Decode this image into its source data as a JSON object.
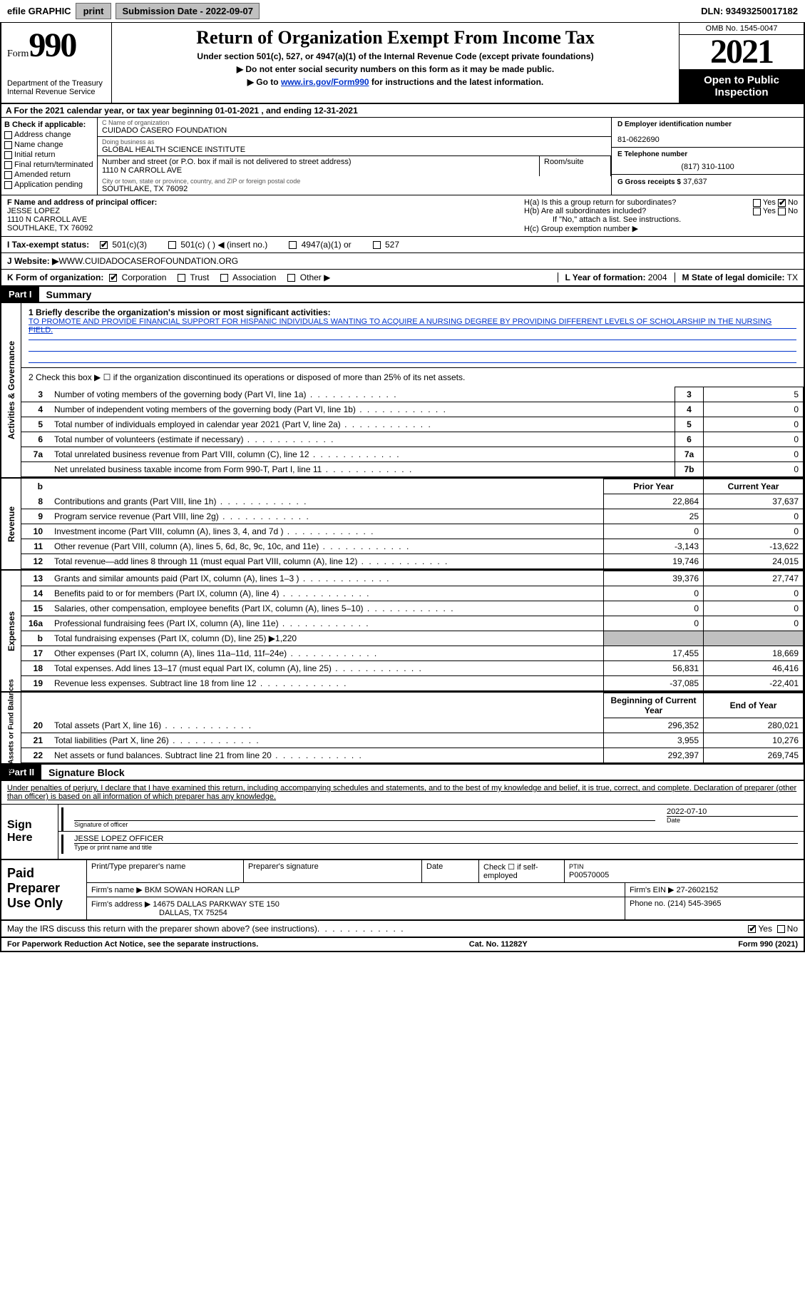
{
  "topbar": {
    "efile_label": "efile GRAPHIC",
    "print_btn": "print",
    "submission_date_label": "Submission Date - 2022-09-07",
    "dln": "DLN: 93493250017182"
  },
  "header": {
    "form_word": "Form",
    "form_number": "990",
    "dept": "Department of the Treasury",
    "irs": "Internal Revenue Service",
    "title": "Return of Organization Exempt From Income Tax",
    "subtitle": "Under section 501(c), 527, or 4947(a)(1) of the Internal Revenue Code (except private foundations)",
    "note1": "▶ Do not enter social security numbers on this form as it may be made public.",
    "note2_pre": "▶ Go to ",
    "note2_link": "www.irs.gov/Form990",
    "note2_post": " for instructions and the latest information.",
    "omb": "OMB No. 1545-0047",
    "year": "2021",
    "open": "Open to Public Inspection"
  },
  "line_a": {
    "text": "A For the 2021 calendar year, or tax year beginning 01-01-2021   , and ending 12-31-2021"
  },
  "col_b": {
    "header": "B Check if applicable:",
    "items": [
      "Address change",
      "Name change",
      "Initial return",
      "Final return/terminated",
      "Amended return",
      "Application pending"
    ]
  },
  "col_c": {
    "name_label": "C Name of organization",
    "name": "CUIDADO CASERO FOUNDATION",
    "dba_label": "Doing business as",
    "dba": "GLOBAL HEALTH SCIENCE INSTITUTE",
    "street_label": "Number and street (or P.O. box if mail is not delivered to street address)",
    "street": "1110 N CARROLL AVE",
    "room_label": "Room/suite",
    "room": "",
    "city_label": "City or town, state or province, country, and ZIP or foreign postal code",
    "city": "SOUTHLAKE, TX  76092"
  },
  "col_d": {
    "ein_label": "D Employer identification number",
    "ein": "81-0622690",
    "tel_label": "E Telephone number",
    "tel": "(817) 310-1100",
    "gross_label": "G Gross receipts $",
    "gross": "37,637"
  },
  "row_f": {
    "label": "F  Name and address of principal officer:",
    "name": "JESSE LOPEZ",
    "addr1": "1110 N CARROLL AVE",
    "addr2": "SOUTHLAKE, TX  76092"
  },
  "row_h": {
    "ha": "H(a)  Is this a group return for subordinates?",
    "ha_yes": "Yes",
    "ha_no": "No",
    "hb": "H(b)  Are all subordinates included?",
    "hb_yes": "Yes",
    "hb_no": "No",
    "hb_note": "If \"No,\" attach a list. See instructions.",
    "hc": "H(c)  Group exemption number ▶"
  },
  "row_i": {
    "label": "I    Tax-exempt status:",
    "opts": [
      "501(c)(3)",
      "501(c) (  ) ◀ (insert no.)",
      "4947(a)(1) or",
      "527"
    ]
  },
  "row_j": {
    "label": "J   Website: ▶",
    "value": "  WWW.CUIDADOCASEROFOUNDATION.ORG"
  },
  "row_k": {
    "label": "K Form of organization:",
    "opts": [
      "Corporation",
      "Trust",
      "Association",
      "Other ▶"
    ],
    "l_label": "L Year of formation:",
    "l_val": "2004",
    "m_label": "M State of legal domicile:",
    "m_val": "TX"
  },
  "part1": {
    "label": "Part I",
    "title": "Summary"
  },
  "mission": {
    "q": "1   Briefly describe the organization's mission or most significant activities:",
    "text": "TO PROMOTE AND PROVIDE FINANCIAL SUPPORT FOR HISPANIC INDIVIDUALS WANTING TO ACQUIRE A NURSING DEGREE BY PROVIDING DIFFERENT LEVELS OF SCHOLARSHIP IN THE NURSING FIELD."
  },
  "activities": {
    "vlabel": "Activities & Governance",
    "line2": "2   Check this box ▶ ☐  if the organization discontinued its operations or disposed of more than 25% of its net assets.",
    "rows": [
      {
        "n": "3",
        "t": "Number of voting members of the governing body (Part VI, line 1a)",
        "box": "3",
        "v": "5"
      },
      {
        "n": "4",
        "t": "Number of independent voting members of the governing body (Part VI, line 1b)",
        "box": "4",
        "v": "0"
      },
      {
        "n": "5",
        "t": "Total number of individuals employed in calendar year 2021 (Part V, line 2a)",
        "box": "5",
        "v": "0"
      },
      {
        "n": "6",
        "t": "Total number of volunteers (estimate if necessary)",
        "box": "6",
        "v": "0"
      },
      {
        "n": "7a",
        "t": "Total unrelated business revenue from Part VIII, column (C), line 12",
        "box": "7a",
        "v": "0"
      },
      {
        "n": "",
        "t": "Net unrelated business taxable income from Form 990-T, Part I, line 11",
        "box": "7b",
        "v": "0"
      }
    ]
  },
  "revenue": {
    "vlabel": "Revenue",
    "hdr_prior": "Prior Year",
    "hdr_curr": "Current Year",
    "rows": [
      {
        "n": "8",
        "t": "Contributions and grants (Part VIII, line 1h)",
        "p": "22,864",
        "c": "37,637"
      },
      {
        "n": "9",
        "t": "Program service revenue (Part VIII, line 2g)",
        "p": "25",
        "c": "0"
      },
      {
        "n": "10",
        "t": "Investment income (Part VIII, column (A), lines 3, 4, and 7d )",
        "p": "0",
        "c": "0"
      },
      {
        "n": "11",
        "t": "Other revenue (Part VIII, column (A), lines 5, 6d, 8c, 9c, 10c, and 11e)",
        "p": "-3,143",
        "c": "-13,622"
      },
      {
        "n": "12",
        "t": "Total revenue—add lines 8 through 11 (must equal Part VIII, column (A), line 12)",
        "p": "19,746",
        "c": "24,015"
      }
    ]
  },
  "expenses": {
    "vlabel": "Expenses",
    "rows": [
      {
        "n": "13",
        "t": "Grants and similar amounts paid (Part IX, column (A), lines 1–3 )",
        "p": "39,376",
        "c": "27,747"
      },
      {
        "n": "14",
        "t": "Benefits paid to or for members (Part IX, column (A), line 4)",
        "p": "0",
        "c": "0"
      },
      {
        "n": "15",
        "t": "Salaries, other compensation, employee benefits (Part IX, column (A), lines 5–10)",
        "p": "0",
        "c": "0"
      },
      {
        "n": "16a",
        "t": "Professional fundraising fees (Part IX, column (A), line 11e)",
        "p": "0",
        "c": "0"
      },
      {
        "n": "b",
        "t": "Total fundraising expenses (Part IX, column (D), line 25) ▶1,220",
        "p": "",
        "c": "",
        "shade": true
      },
      {
        "n": "17",
        "t": "Other expenses (Part IX, column (A), lines 11a–11d, 11f–24e)",
        "p": "17,455",
        "c": "18,669"
      },
      {
        "n": "18",
        "t": "Total expenses. Add lines 13–17 (must equal Part IX, column (A), line 25)",
        "p": "56,831",
        "c": "46,416"
      },
      {
        "n": "19",
        "t": "Revenue less expenses. Subtract line 18 from line 12",
        "p": "-37,085",
        "c": "-22,401"
      }
    ]
  },
  "netassets": {
    "vlabel": "Net Assets or Fund Balances",
    "hdr_begin": "Beginning of Current Year",
    "hdr_end": "End of Year",
    "rows": [
      {
        "n": "20",
        "t": "Total assets (Part X, line 16)",
        "p": "296,352",
        "c": "280,021"
      },
      {
        "n": "21",
        "t": "Total liabilities (Part X, line 26)",
        "p": "3,955",
        "c": "10,276"
      },
      {
        "n": "22",
        "t": "Net assets or fund balances. Subtract line 21 from line 20",
        "p": "292,397",
        "c": "269,745"
      }
    ]
  },
  "part2": {
    "label": "Part II",
    "title": "Signature Block",
    "declaration": "Under penalties of perjury, I declare that I have examined this return, including accompanying schedules and statements, and to the best of my knowledge and belief, it is true, correct, and complete. Declaration of preparer (other than officer) is based on all information of which preparer has any knowledge."
  },
  "sign": {
    "left": "Sign Here",
    "sig_label": "Signature of officer",
    "date_label": "Date",
    "date": "2022-07-10",
    "name": "JESSE LOPEZ  OFFICER",
    "name_label": "Type or print name and title"
  },
  "paid": {
    "left": "Paid Preparer Use Only",
    "r1": {
      "c1": "Print/Type preparer's name",
      "c2": "Preparer's signature",
      "c3": "Date",
      "c4": "Check ☐ if self-employed",
      "c5_label": "PTIN",
      "c5": "P00570005"
    },
    "r2": {
      "label": "Firm's name      ▶",
      "val": "BKM SOWAN HORAN LLP",
      "ein_label": "Firm's EIN ▶",
      "ein": "27-2602152"
    },
    "r3": {
      "label": "Firm's address ▶",
      "val": "14675 DALLAS PARKWAY STE 150",
      "val2": "DALLAS, TX  75254",
      "ph_label": "Phone no.",
      "ph": "(214) 545-3965"
    }
  },
  "discuss": {
    "q": "May the IRS discuss this return with the preparer shown above? (see instructions)",
    "yes": "Yes",
    "no": "No"
  },
  "footer": {
    "left": "For Paperwork Reduction Act Notice, see the separate instructions.",
    "mid": "Cat. No. 11282Y",
    "right": "Form 990 (2021)"
  }
}
